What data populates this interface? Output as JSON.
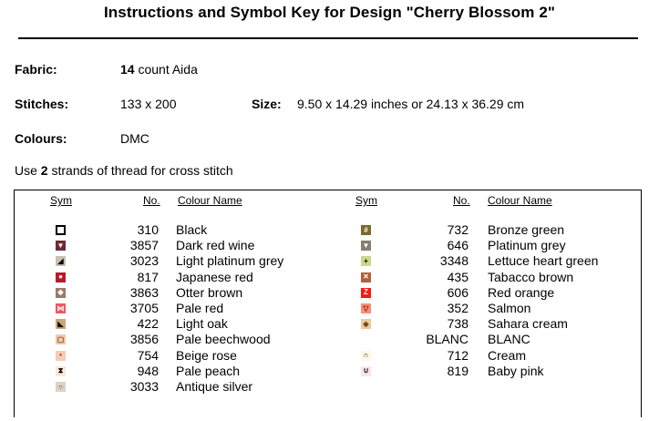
{
  "title": "Instructions and Symbol Key for Design \"Cherry Blossom 2\"",
  "fabric": {
    "label": "Fabric:",
    "count": "14",
    "rest": " count Aida"
  },
  "stitches": {
    "label": "Stitches:",
    "value": "133 x 200"
  },
  "size": {
    "label": "Size:",
    "value": "9.50 x 14.29 inches or 24.13 x 36.29 cm"
  },
  "colours": {
    "label": "Colours:",
    "value": "DMC"
  },
  "usage": {
    "pre": "Use ",
    "strands": "2",
    "post": " strands of thread for cross stitch"
  },
  "headers": {
    "sym": "Sym",
    "no": "No.",
    "name": "Colour Name"
  },
  "left_rows": [
    {
      "no": "310",
      "name": "Black",
      "icon": "hollow-square-icon",
      "bg": "#ffffff",
      "fg": "#000000",
      "glyph": "",
      "border": "#000000"
    },
    {
      "no": "3857",
      "name": "Dark red wine",
      "icon": "down-triangle-icon",
      "bg": "#6e2a33",
      "fg": "#ffffff",
      "glyph": "▼",
      "border": ""
    },
    {
      "no": "3023",
      "name": "Light platinum grey",
      "icon": "half-triangle-icon",
      "bg": "#c8c1ae",
      "fg": "#000000",
      "glyph": "◢",
      "border": ""
    },
    {
      "no": "817",
      "name": "Japanese red",
      "icon": "circle-icon",
      "bg": "#b81c28",
      "fg": "#ffffff",
      "glyph": "●",
      "border": ""
    },
    {
      "no": "3863",
      "name": "Otter brown",
      "icon": "diamond-icon",
      "bg": "#9a7a68",
      "fg": "#ffffff",
      "glyph": "◆",
      "border": ""
    },
    {
      "no": "3705",
      "name": "Pale red",
      "icon": "bowtie-icon",
      "bg": "#f2565f",
      "fg": "#ffffff",
      "glyph": "⋈",
      "border": ""
    },
    {
      "no": "422",
      "name": "Light oak",
      "icon": "corner-triangle-icon",
      "bg": "#c9a777",
      "fg": "#000000",
      "glyph": "◣",
      "border": ""
    },
    {
      "no": "3856",
      "name": "Pale beechwood",
      "icon": "square-outline-icon",
      "bg": "#f3c9a4",
      "fg": "#7a4a2a",
      "glyph": "▢",
      "border": ""
    },
    {
      "no": "754",
      "name": "Beige rose",
      "icon": "dot-icon",
      "bg": "#f6cbb5",
      "fg": "#a0412e",
      "glyph": "•",
      "border": ""
    },
    {
      "no": "948",
      "name": "Pale peach",
      "icon": "hourglass-icon",
      "bg": "#fde7d9",
      "fg": "#000000",
      "glyph": "⧗",
      "border": ""
    },
    {
      "no": "3033",
      "name": "Antique silver",
      "icon": "ring-icon",
      "bg": "#dcd3c3",
      "fg": "#444444",
      "glyph": "○",
      "border": ""
    }
  ],
  "right_rows": [
    {
      "no": "732",
      "name": "Bronze green",
      "icon": "hash-icon",
      "bg": "#7a6a28",
      "fg": "#ffffff",
      "glyph": "#",
      "border": ""
    },
    {
      "no": "646",
      "name": "Platinum grey",
      "icon": "down-triangle-icon",
      "bg": "#857e73",
      "fg": "#ffffff",
      "glyph": "▼",
      "border": ""
    },
    {
      "no": "3348",
      "name": "Lettuce heart green",
      "icon": "plus-icon",
      "bg": "#c9d98e",
      "fg": "#000000",
      "glyph": "+",
      "border": ""
    },
    {
      "no": "435",
      "name": "Tabacco brown",
      "icon": "x-icon",
      "bg": "#b0603a",
      "fg": "#ffffff",
      "glyph": "✕",
      "border": ""
    },
    {
      "no": "606",
      "name": "Red orange",
      "icon": "z-icon",
      "bg": "#f21d10",
      "fg": "#ffffff",
      "glyph": "Z",
      "border": ""
    },
    {
      "no": "352",
      "name": "Salmon",
      "icon": "outline-triangle-icon",
      "bg": "#fb8d79",
      "fg": "#7a2010",
      "glyph": "▽",
      "border": ""
    },
    {
      "no": "738",
      "name": "Sahara cream",
      "icon": "small-diamond-icon",
      "bg": "#eccc9e",
      "fg": "#7a4a1a",
      "glyph": "◆",
      "border": ""
    },
    {
      "no": "BLANC",
      "name": "BLANC",
      "icon": "",
      "bg": "",
      "fg": "",
      "glyph": "",
      "border": ""
    },
    {
      "no": "712",
      "name": "Cream",
      "icon": "arch-icon",
      "bg": "#fff6e8",
      "fg": "#000000",
      "glyph": "∩",
      "border": ""
    },
    {
      "no": "819",
      "name": "Baby pink",
      "icon": "cup-icon",
      "bg": "#fbe4e6",
      "fg": "#000000",
      "glyph": "∪",
      "border": ""
    }
  ]
}
